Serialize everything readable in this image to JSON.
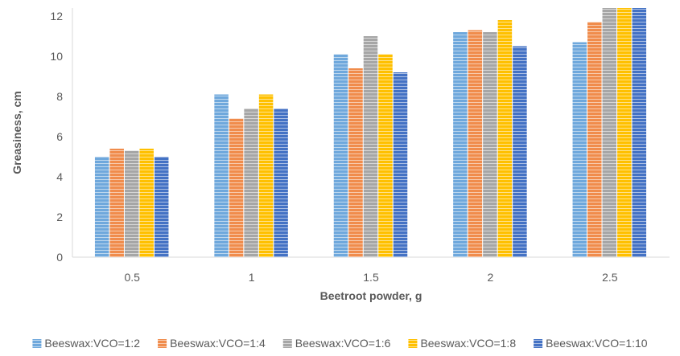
{
  "chart_data": {
    "type": "bar",
    "title": "",
    "xlabel": "Beetroot powder, g",
    "ylabel": "Greasiness, cm",
    "categories": [
      "0.5",
      "1",
      "1.5",
      "2",
      "2.5"
    ],
    "ylim": [
      0,
      12.4
    ],
    "yticks": [
      0,
      2,
      4,
      6,
      8,
      10,
      12
    ],
    "grid": false,
    "legend_position": "bottom",
    "bar_style": "horizontal-line hatch",
    "series": [
      {
        "name": "Beeswax:VCO=1:2",
        "color": "#6fa8dc",
        "values": [
          5.0,
          8.1,
          10.1,
          11.2,
          10.7
        ]
      },
      {
        "name": "Beeswax:VCO=1:4",
        "color": "#f08c4c",
        "values": [
          5.4,
          6.9,
          9.4,
          11.3,
          11.7
        ]
      },
      {
        "name": "Beeswax:VCO=1:6",
        "color": "#a6a6a6",
        "values": [
          5.3,
          7.4,
          11.0,
          11.2,
          12.4
        ]
      },
      {
        "name": "Beeswax:VCO=1:8",
        "color": "#ffc000",
        "values": [
          5.4,
          8.1,
          10.1,
          11.8,
          12.4
        ]
      },
      {
        "name": "Beeswax:VCO=1:10",
        "color": "#4472c4",
        "values": [
          5.0,
          7.4,
          9.2,
          10.5,
          12.4
        ]
      }
    ]
  }
}
